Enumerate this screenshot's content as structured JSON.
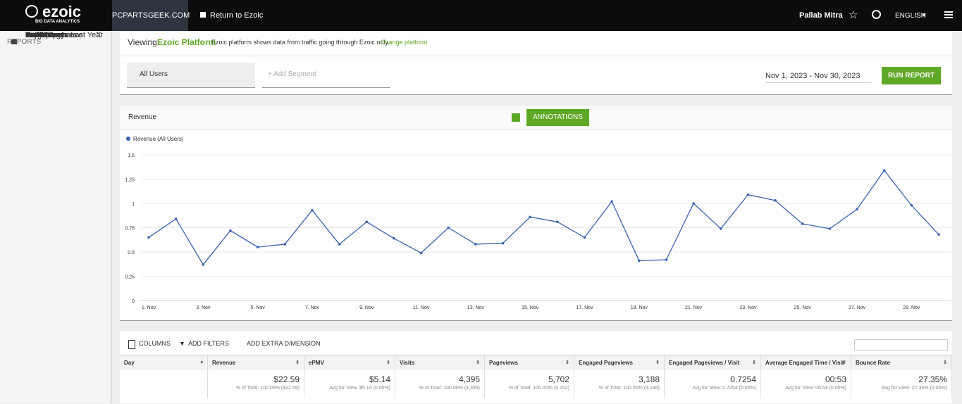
{
  "header": {
    "logo": "ezoic",
    "tagline": "BIG DATA ANALYTICS",
    "site": "PCPARTSGEEK.COM",
    "return_link": "Return to Ezoic",
    "user": "Pallab Mitra",
    "language": "ENGLISH"
  },
  "sidebar": {
    "heading": "REPORTS",
    "items": [
      "Insights",
      "Real-Time",
      "Revenue",
      "Revenue Overview",
      "Revenue vs. Last Year",
      "Traffic",
      "Experiments",
      "Audience",
      "Behavior",
      "Content",
      "Sites",
      "Site Speed",
      "Technology",
      "Traffic Sources",
      "User Experience",
      "Yield"
    ]
  },
  "viewing": {
    "label": "Viewing:",
    "platform": "Ezoic Platform",
    "note": "Ezoic platform shows data from traffic going through Ezoic only.",
    "change": "Change platform"
  },
  "segments": {
    "current": "All Users",
    "add": "+ Add Segment",
    "date_range": "Nov 1, 2023 - Nov 30, 2023",
    "run": "RUN REPORT"
  },
  "chart_toolbar": {
    "metric": "Revenue",
    "annotations": "ANNOTATIONS"
  },
  "chart_data": {
    "type": "line",
    "categories": [
      "1. Nov",
      null,
      "3. Nov",
      null,
      "5. Nov",
      null,
      "7. Nov",
      null,
      "9. Nov",
      null,
      "11. Nov",
      null,
      "13. Nov",
      null,
      "15. Nov",
      null,
      "17. Nov",
      null,
      "19. Nov",
      null,
      "21. Nov",
      null,
      "23. Nov",
      null,
      "25. Nov",
      null,
      "27. Nov",
      null,
      "29. Nov",
      null
    ],
    "series": [
      {
        "name": "Revenue (All Users)",
        "color": "#3b62b4",
        "values": [
          0.65,
          0.84,
          0.37,
          0.72,
          0.55,
          0.58,
          0.93,
          0.58,
          0.81,
          0.64,
          0.49,
          0.75,
          0.58,
          0.59,
          0.86,
          0.81,
          0.65,
          1.02,
          0.41,
          0.42,
          1.0,
          0.74,
          1.09,
          1.03,
          0.79,
          0.74,
          0.94,
          1.34,
          0.98,
          0.68
        ]
      }
    ],
    "ylim": [
      0,
      1.5
    ],
    "yticks": [
      0,
      0.25,
      0.5,
      0.75,
      1,
      1.25,
      1.5
    ],
    "grid": true,
    "legend": "top-left"
  },
  "table_toolbar": {
    "columns": "COLUMNS",
    "filters": "ADD FILTERS",
    "dimension": "ADD EXTRA DIMENSION"
  },
  "table": {
    "columns": [
      "Day",
      "Revenue",
      "ePMV",
      "Visits",
      "Pageviews",
      "Engaged Pageviews",
      "Engaged Pageviews / Visit",
      "Average Engaged Time / Visit",
      "Bounce Rate"
    ],
    "totals": [
      {
        "value": "$22.59",
        "note": "% of Total: 100.00% ($22.59)"
      },
      {
        "value": "$5.14",
        "note": "Avg for View: $5.14 (0.00%)"
      },
      {
        "value": "4,395",
        "note": "% of Total: 100.00% (4,395)"
      },
      {
        "value": "5,702",
        "note": "% of Total: 100.00% (5,702)"
      },
      {
        "value": "3,188",
        "note": "% of Total: 100.00% (3,188)"
      },
      {
        "value": "0.7254",
        "note": "Avg for View: 0.7254 (0.00%)"
      },
      {
        "value": "00:53",
        "note": "Avg for View: 00:53 (0.00%)"
      },
      {
        "value": "27.35%",
        "note": "Avg for View: 27.35% (0.00%)"
      }
    ]
  }
}
